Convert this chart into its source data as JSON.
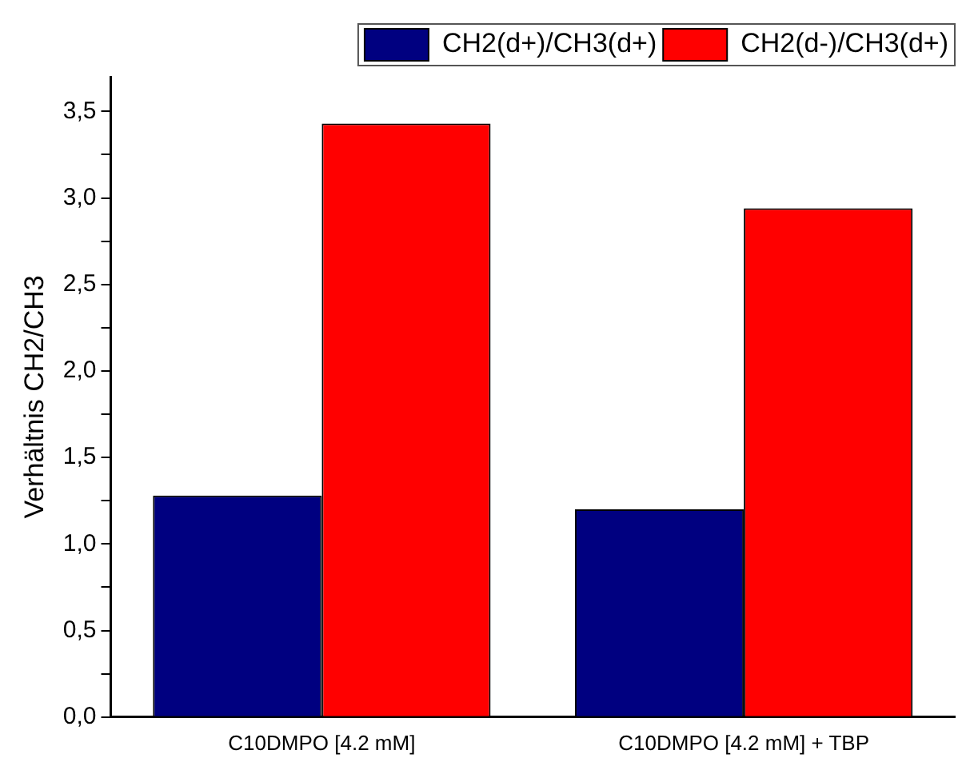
{
  "chart_data": {
    "type": "bar",
    "ylabel": "Verhältnis CH2/CH3",
    "categories": [
      "C10DMPO [4.2 mM]",
      "C10DMPO [4.2 mM] + TBP"
    ],
    "series": [
      {
        "name": "CH2(d+)/CH3(d+)",
        "color": "#000080",
        "values": [
          1.28,
          1.2
        ]
      },
      {
        "name": "CH2(d-)/CH3(d+)",
        "color": "#ff0000",
        "values": [
          3.43,
          2.94
        ]
      }
    ],
    "ylim": [
      0,
      3.7
    ],
    "yticks": [
      {
        "value": 0,
        "label": "0,0"
      },
      {
        "value": 0.25,
        "label": null
      },
      {
        "value": 0.5,
        "label": "0,5"
      },
      {
        "value": 0.75,
        "label": null
      },
      {
        "value": 1,
        "label": "1,0"
      },
      {
        "value": 1.25,
        "label": null
      },
      {
        "value": 1.5,
        "label": "1,5"
      },
      {
        "value": 1.75,
        "label": null
      },
      {
        "value": 2,
        "label": "2,0"
      },
      {
        "value": 2.25,
        "label": null
      },
      {
        "value": 2.5,
        "label": "2,5"
      },
      {
        "value": 2.75,
        "label": null
      },
      {
        "value": 3,
        "label": "3,0"
      },
      {
        "value": 3.25,
        "label": null
      },
      {
        "value": 3.5,
        "label": "3,5"
      }
    ],
    "grid": false,
    "legend": "top right"
  }
}
